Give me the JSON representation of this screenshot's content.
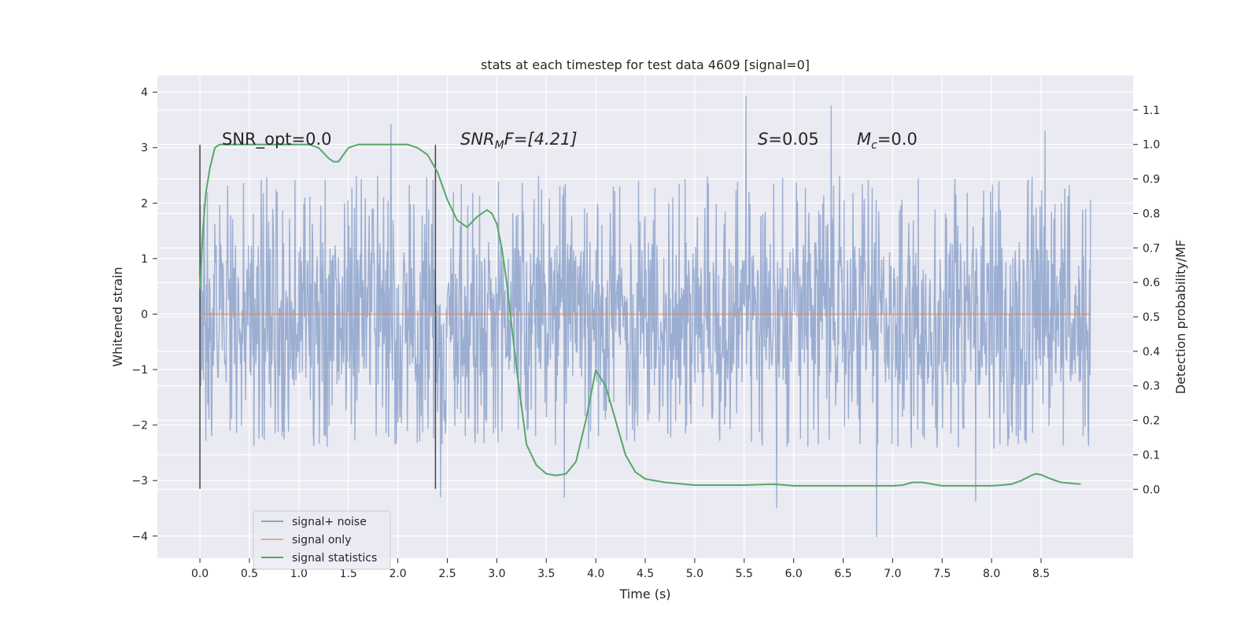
{
  "chart_data": {
    "type": "line",
    "title": "stats at each timestep for test data 4609 [signal=0]",
    "xlabel": "Time (s)",
    "ylabel": "Whitened strain",
    "y2label": "Detection probability/MF",
    "xlim": [
      -0.43,
      9.43
    ],
    "ylim": [
      -4.4,
      4.3
    ],
    "y2lim": [
      -0.2,
      1.2
    ],
    "x_ticks": [
      0.0,
      0.5,
      1.0,
      1.5,
      2.0,
      2.5,
      3.0,
      3.5,
      4.0,
      4.5,
      5.0,
      5.5,
      6.0,
      6.5,
      7.0,
      7.5,
      8.0,
      8.5
    ],
    "x_tick_labels": [
      "0.0",
      "0.5",
      "1.0",
      "1.5",
      "2.0",
      "2.5",
      "3.0",
      "3.5",
      "4.0",
      "4.5",
      "5.0",
      "5.5",
      "6.0",
      "6.5",
      "7.0",
      "7.5",
      "8.0",
      "8.5"
    ],
    "y_ticks": [
      4,
      3,
      2,
      1,
      0,
      -1,
      -2,
      -3,
      -4
    ],
    "y_tick_labels": [
      "4",
      "3",
      "2",
      "1",
      "0",
      "−1",
      "−2",
      "−3",
      "−4"
    ],
    "y2_ticks": [
      1.1,
      1.0,
      0.9,
      0.8,
      0.7,
      0.6,
      0.5,
      0.4,
      0.3,
      0.2,
      0.1,
      0.0
    ],
    "y2_tick_labels": [
      "1.1",
      "1.0",
      "0.9",
      "0.8",
      "0.7",
      "0.6",
      "0.5",
      "0.4",
      "0.3",
      "0.2",
      "0.1",
      "0.0"
    ],
    "grid": true,
    "background": "#eaeaf2",
    "legend_position": "lower-left",
    "legend": [
      {
        "label": "signal+ noise",
        "color": "#4c72b0"
      },
      {
        "label": "signal only",
        "color": "#dd8452"
      },
      {
        "label": "signal statistics",
        "color": "#55a868"
      }
    ],
    "annotations": {
      "snr_opt": "SNR_opt=0.0",
      "snr_mf_main": "SNR",
      "snr_mf_sub": "M",
      "snr_mf_rest": "F=[4.21]",
      "s_main": "S",
      "s_rest": "=0.05",
      "mc_main": "M",
      "mc_sub": "c",
      "mc_rest": "=0.0"
    },
    "markers_x": [
      0.0,
      2.38
    ],
    "noise_series": {
      "name": "signal+ noise",
      "x_range": [
        0.0,
        9.0
      ],
      "color": "#4c72b0",
      "typical_envelope": [
        -1.8,
        1.85
      ],
      "max_spikes": [
        [
          5.52,
          3.93
        ],
        [
          6.38,
          3.76
        ],
        [
          1.93,
          3.42
        ],
        [
          8.54,
          3.3
        ]
      ],
      "min_spikes": [
        [
          6.84,
          -4.02
        ],
        [
          5.83,
          -3.5
        ],
        [
          7.84,
          -3.38
        ],
        [
          2.43,
          -3.3
        ],
        [
          3.68,
          -3.31
        ]
      ]
    },
    "signal_series": {
      "name": "signal only",
      "color": "#dd8452",
      "x": [
        0.0,
        9.0
      ],
      "y": [
        0.0,
        0.0
      ]
    },
    "statistics_series": {
      "name": "signal statistics",
      "color": "#55a868",
      "x": [
        0.0,
        0.03,
        0.06,
        0.1,
        0.15,
        0.2,
        0.3,
        0.5,
        0.8,
        1.0,
        1.1,
        1.2,
        1.3,
        1.35,
        1.4,
        1.5,
        1.6,
        1.8,
        2.0,
        2.1,
        2.2,
        2.3,
        2.4,
        2.5,
        2.6,
        2.7,
        2.8,
        2.9,
        2.95,
        3.0,
        3.05,
        3.1,
        3.2,
        3.3,
        3.4,
        3.5,
        3.6,
        3.7,
        3.8,
        3.9,
        4.0,
        4.1,
        4.2,
        4.3,
        4.4,
        4.5,
        4.7,
        5.0,
        5.5,
        5.8,
        6.0,
        6.5,
        7.0,
        7.1,
        7.2,
        7.3,
        7.5,
        8.0,
        8.1,
        8.2,
        8.3,
        8.4,
        8.45,
        8.5,
        8.6,
        8.7,
        8.9
      ],
      "y": [
        0.58,
        0.75,
        0.86,
        0.93,
        0.99,
        1.0,
        1.0,
        1.0,
        1.0,
        1.0,
        1.0,
        0.99,
        0.96,
        0.95,
        0.95,
        0.99,
        1.0,
        1.0,
        1.0,
        1.0,
        0.99,
        0.97,
        0.92,
        0.84,
        0.78,
        0.76,
        0.79,
        0.81,
        0.8,
        0.77,
        0.7,
        0.6,
        0.35,
        0.13,
        0.07,
        0.045,
        0.04,
        0.045,
        0.08,
        0.2,
        0.345,
        0.3,
        0.2,
        0.1,
        0.05,
        0.03,
        0.02,
        0.012,
        0.012,
        0.015,
        0.01,
        0.01,
        0.01,
        0.012,
        0.02,
        0.02,
        0.01,
        0.01,
        0.012,
        0.015,
        0.025,
        0.04,
        0.045,
        0.042,
        0.03,
        0.02,
        0.015
      ]
    }
  }
}
